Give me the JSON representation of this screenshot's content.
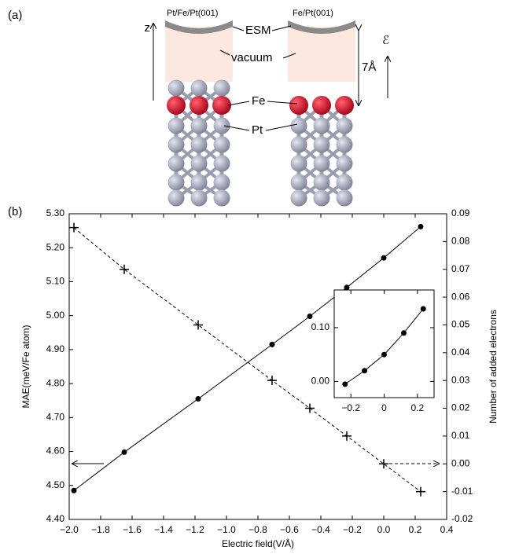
{
  "panel_a": {
    "label": "(a)",
    "slabs": [
      "Pt/Fe/Pt(001)",
      "Fe/Pt(001)"
    ],
    "esm": "ESM",
    "vacuum": "vacuum",
    "fe": "Fe",
    "pt": "Pt",
    "z": "z",
    "distance": "7Å",
    "field": "ℰ"
  },
  "chart_data": [
    {
      "type": "line",
      "panel_label": "(b)",
      "x_label": "Electric field(V/Å)",
      "y_label": "MAE(meV/Fe atom)",
      "y2_label": "Number of added electrons",
      "x": [
        -1.97,
        -1.65,
        -1.18,
        -0.71,
        -0.47,
        -0.235,
        0.0,
        0.235
      ],
      "series": [
        {
          "color": "#000000",
          "marker": "circle",
          "line_style": "solid",
          "values": [
            4.485,
            4.598,
            4.755,
            4.915,
            4.998,
            5.083,
            5.17,
            5.262
          ]
        },
        {
          "color": "#000000",
          "marker": "plus",
          "line_style": "dashed",
          "axis": "y2",
          "values": [
            0.085,
            0.07,
            0.05,
            0.03,
            0.02,
            0.01,
            0.0,
            -0.01
          ]
        }
      ],
      "xlim": [
        -2.0,
        0.4
      ],
      "xticks": [
        {
          "value": -2.0,
          "label": "−2.0"
        },
        {
          "value": -1.8,
          "label": "−1.8"
        },
        {
          "value": -1.6,
          "label": "−1.6"
        },
        {
          "value": -1.4,
          "label": "−1.4"
        },
        {
          "value": -1.2,
          "label": "−1.2"
        },
        {
          "value": -1.0,
          "label": "−1.0"
        },
        {
          "value": -0.8,
          "label": "−0.8"
        },
        {
          "value": -0.6,
          "label": "−0.6"
        },
        {
          "value": -0.4,
          "label": "−0.4"
        },
        {
          "value": -0.2,
          "label": "−0.2"
        },
        {
          "value": 0.0,
          "label": "0.0"
        },
        {
          "value": 0.2,
          "label": "0.2"
        },
        {
          "value": 0.4,
          "label": "0.4"
        }
      ],
      "ylim": [
        4.4,
        5.3
      ],
      "yticks": [
        {
          "value": 4.4,
          "label": "4.40"
        },
        {
          "value": 4.5,
          "label": "4.50"
        },
        {
          "value": 4.6,
          "label": "4.60"
        },
        {
          "value": 4.7,
          "label": "4.70"
        },
        {
          "value": 4.8,
          "label": "4.80"
        },
        {
          "value": 4.9,
          "label": "4.90"
        },
        {
          "value": 5.0,
          "label": "5.00"
        },
        {
          "value": 5.1,
          "label": "5.10"
        },
        {
          "value": 5.2,
          "label": "5.20"
        },
        {
          "value": 5.3,
          "label": "5.30"
        }
      ],
      "y2lim": [
        -0.02,
        0.09
      ],
      "y2ticks": [
        {
          "value": -0.02,
          "label": "-0.02"
        },
        {
          "value": -0.01,
          "label": "-0.01"
        },
        {
          "value": 0.0,
          "label": "0.00"
        },
        {
          "value": 0.01,
          "label": "0.01"
        },
        {
          "value": 0.02,
          "label": "0.02"
        },
        {
          "value": 0.03,
          "label": "0.03"
        },
        {
          "value": 0.04,
          "label": "0.04"
        },
        {
          "value": 0.05,
          "label": "0.05"
        },
        {
          "value": 0.06,
          "label": "0.06"
        },
        {
          "value": 0.07,
          "label": "0.07"
        },
        {
          "value": 0.08,
          "label": "0.08"
        },
        {
          "value": 0.09,
          "label": "0.09"
        }
      ]
    },
    {
      "type": "line",
      "x": [
        -0.235,
        -0.118,
        0.0,
        0.118,
        0.235
      ],
      "series": [
        {
          "color": "#000000",
          "marker": "circle",
          "line_style": "solid",
          "values": [
            -0.005,
            0.02,
            0.05,
            0.09,
            0.135
          ]
        }
      ],
      "xlim": [
        -0.3,
        0.3
      ],
      "xticks": [
        {
          "value": -0.2,
          "label": "−0.2"
        },
        {
          "value": 0.0,
          "label": "0"
        },
        {
          "value": 0.2,
          "label": "0.2"
        }
      ],
      "ylim": [
        -0.03,
        0.17
      ],
      "yticks": [
        {
          "value": 0.0,
          "label": "0.00"
        },
        {
          "value": 0.1,
          "label": "0.10"
        }
      ]
    }
  ]
}
